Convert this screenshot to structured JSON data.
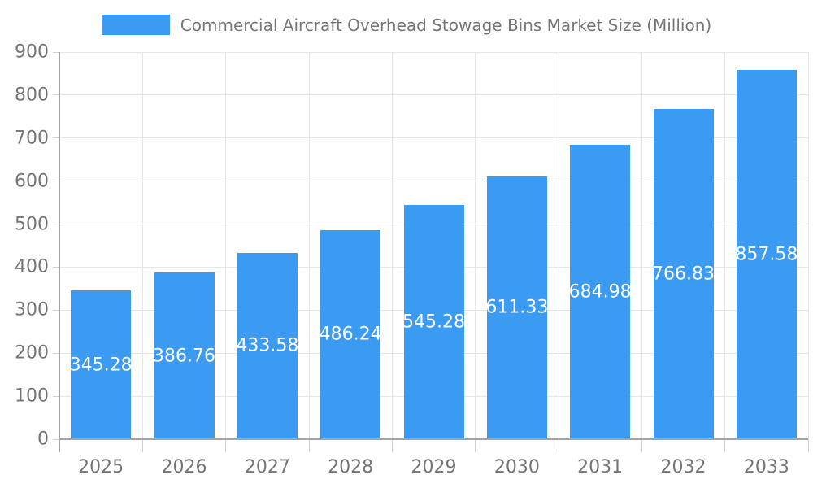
{
  "chart_data": {
    "type": "bar",
    "title": "Commercial Aircraft Overhead Stowage Bins Market Size (Million)",
    "categories": [
      "2025",
      "2026",
      "2027",
      "2028",
      "2029",
      "2030",
      "2031",
      "2032",
      "2033"
    ],
    "values": [
      345.28,
      386.76,
      433.58,
      486.24,
      545.28,
      611.33,
      684.98,
      766.83,
      857.58
    ],
    "value_labels": [
      "345.28",
      "386.76",
      "433.58",
      "486.24",
      "545.28",
      "611.33",
      "684.98",
      "766.83",
      "857.58"
    ],
    "xlabel": "",
    "ylabel": "",
    "ylim": [
      0,
      900
    ],
    "ytick_step": 100,
    "ytick_labels": [
      "0",
      "100",
      "200",
      "300",
      "400",
      "500",
      "600",
      "700",
      "800",
      "900"
    ],
    "grid": true,
    "legend_position": "top",
    "value_label_position": "inside-center",
    "colors": {
      "bar": "#3b9bf2",
      "value_label_text": "#ffffff",
      "axis_text": "#757575",
      "gridline": "#e6e6e6",
      "tick": "#d0d0d0",
      "axis_line": "#a3a3a3",
      "background": "#ffffff"
    }
  }
}
